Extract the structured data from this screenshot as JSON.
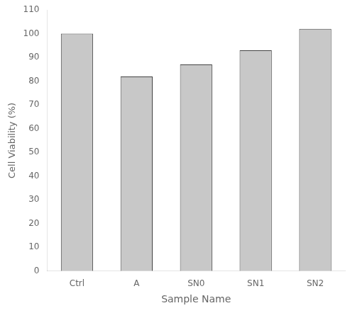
{
  "chart_data": {
    "type": "bar",
    "categories": [
      "Ctrl",
      "A",
      "SN0",
      "SN1",
      "SN2"
    ],
    "values": [
      100,
      82,
      87,
      93,
      102
    ],
    "color": "#c8c8c8",
    "xlabel": "Sample Name",
    "ylabel": "Cell Viability (%)",
    "ylim": [
      0,
      110
    ],
    "yticks": [
      0,
      10,
      20,
      30,
      40,
      50,
      60,
      70,
      80,
      90,
      100,
      110
    ],
    "grid": false
  }
}
